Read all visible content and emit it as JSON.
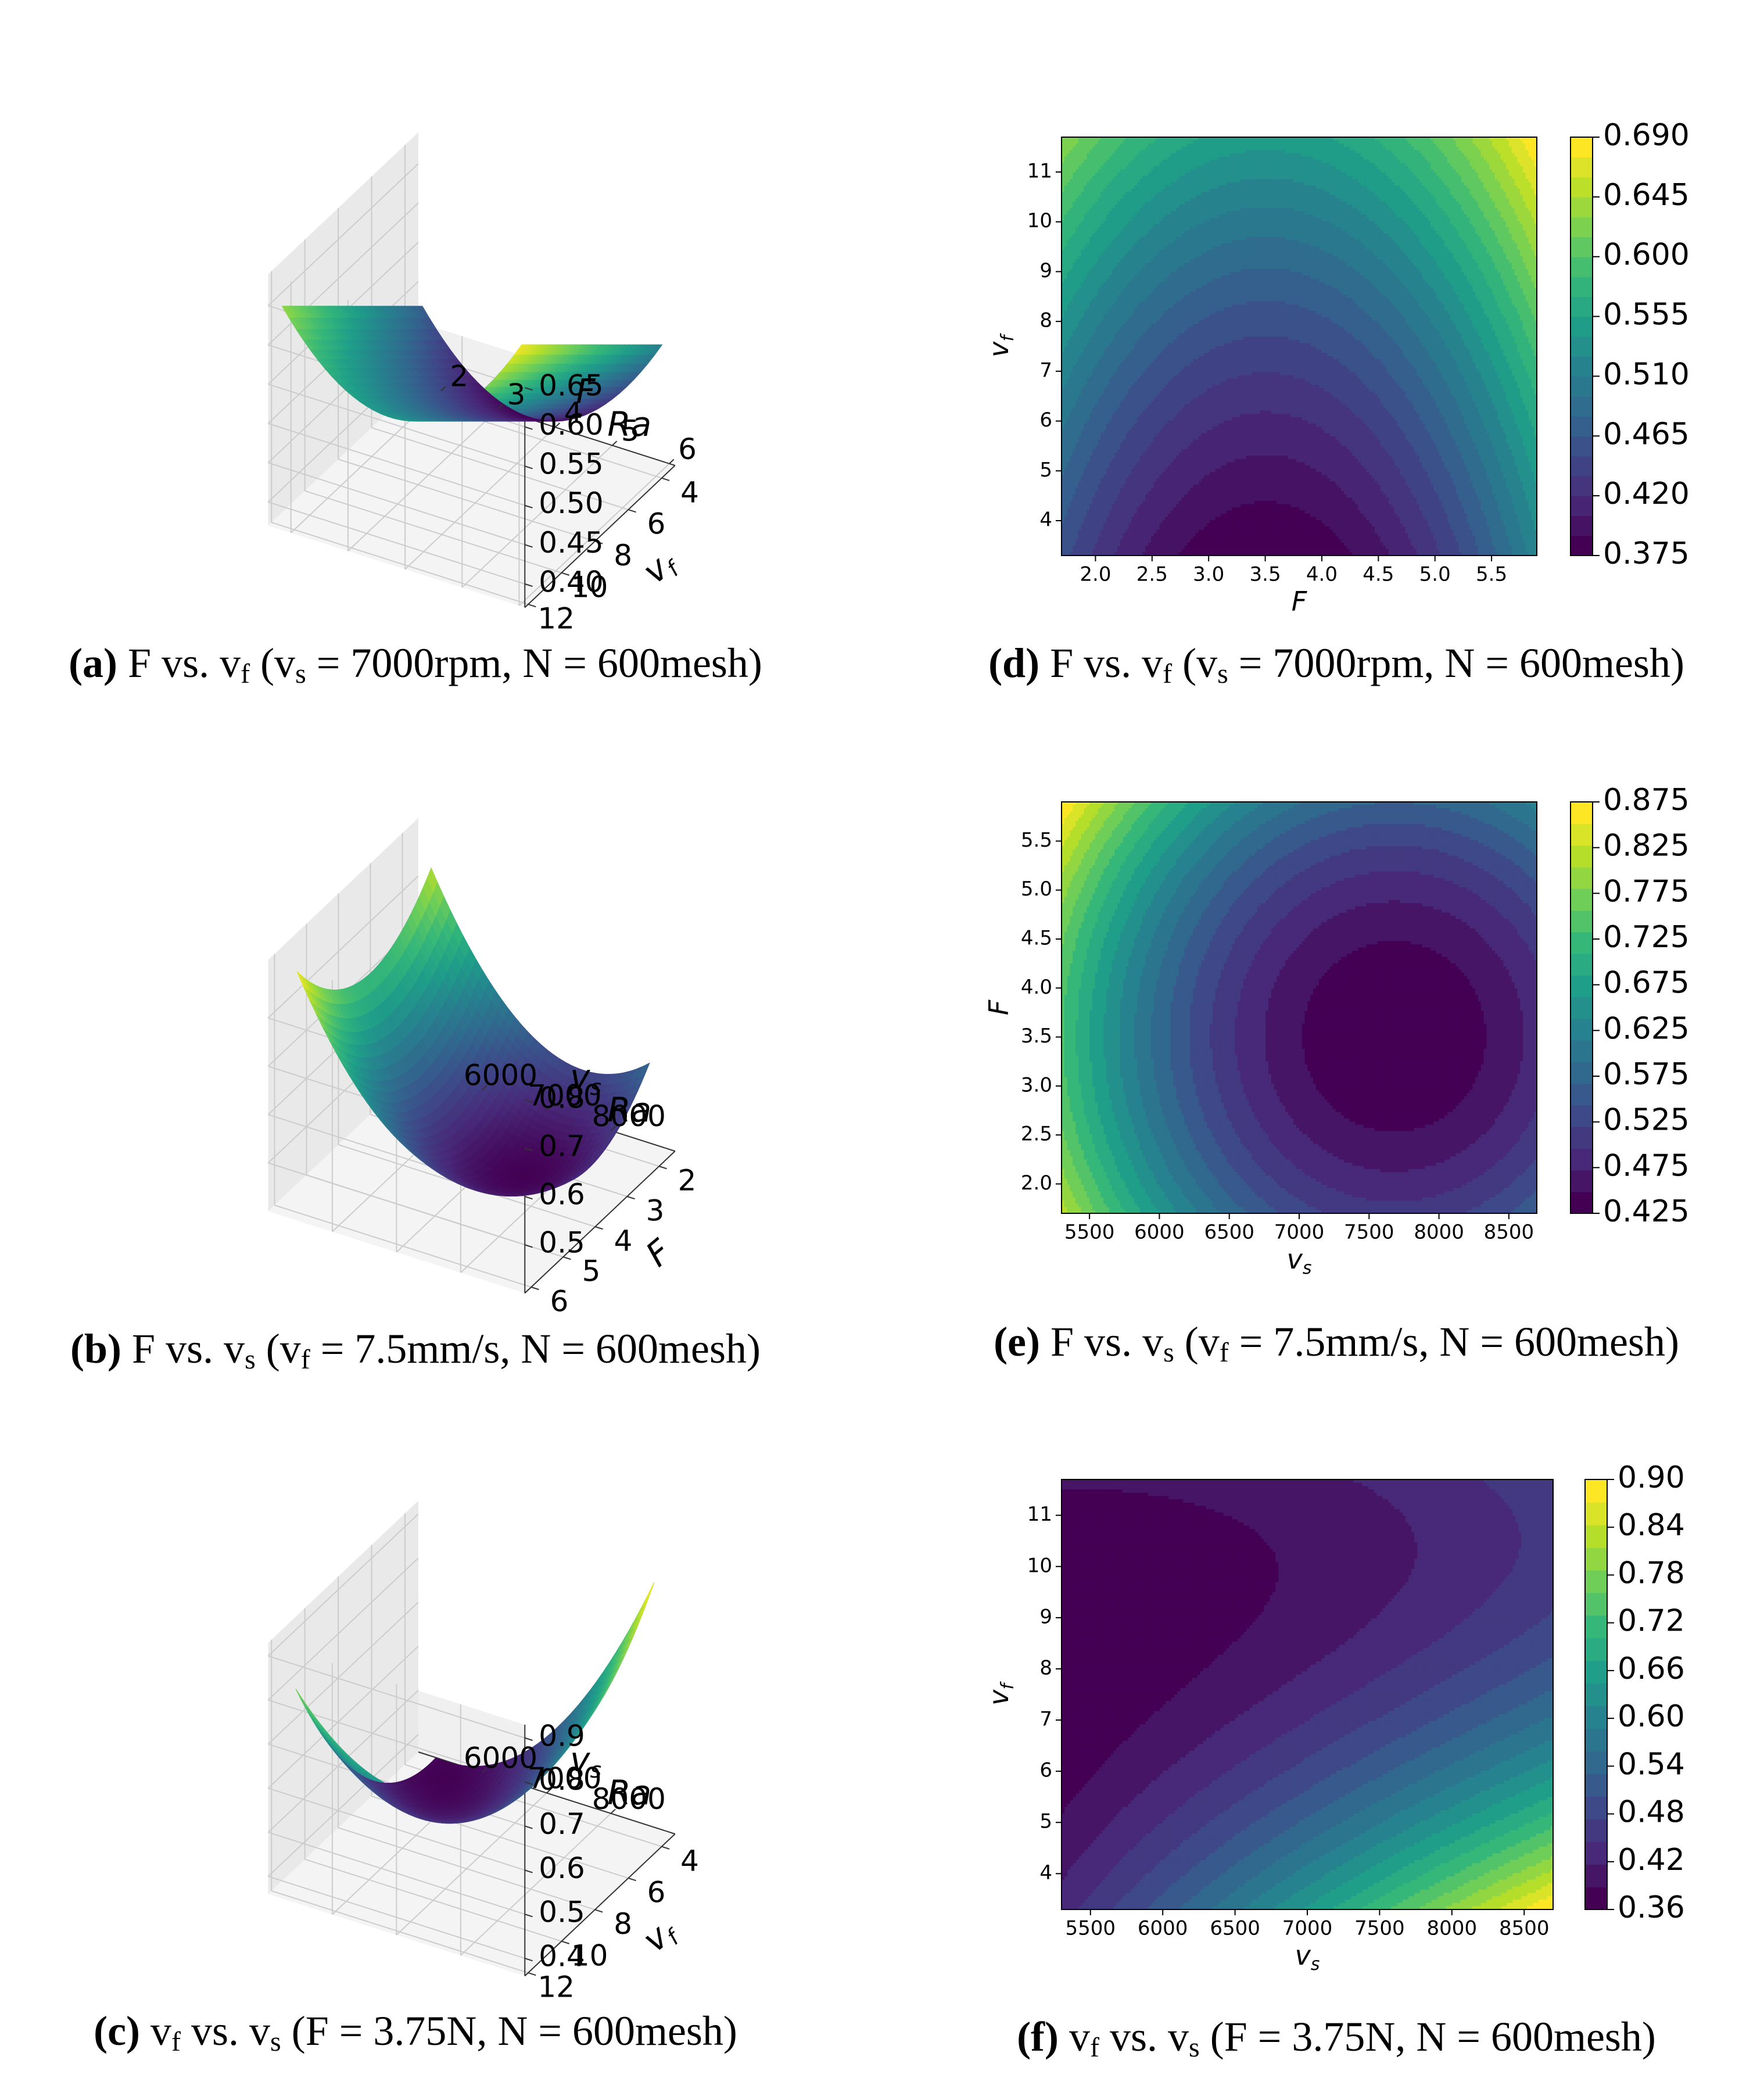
{
  "colors": {
    "viridis": [
      "#440154",
      "#482878",
      "#3e4989",
      "#31688e",
      "#26828e",
      "#1f9e89",
      "#35b779",
      "#6ece58",
      "#b5de2b",
      "#fde725"
    ],
    "pane": "#f0f0f0",
    "grid": "#cccccc",
    "text": "#000000"
  },
  "captions": [
    {
      "id": "a",
      "letter": "(a)",
      "parts": [
        "F vs. v",
        "f",
        " (v",
        "s",
        " = 7000rpm, N = 600mesh)"
      ]
    },
    {
      "id": "b",
      "letter": "(b)",
      "parts": [
        "F vs. v",
        "s",
        " (v",
        "f",
        " = 7.5mm/s, N = 600mesh)"
      ]
    },
    {
      "id": "c",
      "letter": "(c)",
      "parts": [
        "v",
        "f",
        " vs. v",
        "s",
        " (F = 3.75N, N = 600mesh)"
      ]
    },
    {
      "id": "d",
      "letter": "(d)",
      "parts": [
        "F vs. v",
        "f",
        " (v",
        "s",
        " = 7000rpm, N = 600mesh)"
      ]
    },
    {
      "id": "e",
      "letter": "(e)",
      "parts": [
        "F vs. v",
        "s",
        " (v",
        "f",
        " = 7.5mm/s, N = 600mesh)"
      ]
    },
    {
      "id": "f",
      "letter": "(f)",
      "parts": [
        "v",
        "f",
        " vs. v",
        "s",
        " (F = 3.75N, N = 600mesh)"
      ]
    }
  ],
  "chart_data": [
    {
      "id": "a",
      "type": "surface3d",
      "xlabel": "F",
      "ylabel": "v_f",
      "zlabel": "Ra",
      "xlim": [
        1.6,
        6.1
      ],
      "ylim": [
        3.2,
        12.2
      ],
      "zlim": [
        0.37,
        0.69
      ],
      "xticks": [
        2,
        3,
        4,
        5,
        6
      ],
      "yticks": [
        4,
        6,
        8,
        10,
        12
      ],
      "zticks": [
        "0.40",
        "0.45",
        "0.50",
        "0.55",
        "0.60",
        "0.65"
      ],
      "zvals": [
        0.4,
        0.45,
        0.5,
        0.55,
        0.6,
        0.65
      ],
      "surface": {
        "x_range": [
          1.7,
          5.9
        ],
        "y_range": [
          3.3,
          11.7
        ],
        "z_min": 0.375,
        "z_max": 0.69
      }
    },
    {
      "id": "b",
      "type": "surface3d",
      "xlabel": "v_s",
      "ylabel": "F",
      "zlabel": "Ra",
      "xlim": [
        5000,
        9000
      ],
      "ylim": [
        1.5,
        6.2
      ],
      "zlim": [
        0.4,
        0.92
      ],
      "xticks": [
        6000,
        7000,
        8000
      ],
      "yticks": [
        2,
        3,
        4,
        5,
        6
      ],
      "zticks": [
        "0.5",
        "0.6",
        "0.7",
        "0.8"
      ],
      "zvals": [
        0.5,
        0.6,
        0.7,
        0.8
      ],
      "surface": {
        "x_range": [
          5300,
          8700
        ],
        "y_range": [
          1.7,
          5.9
        ],
        "z_min": 0.425,
        "z_max": 0.89
      }
    },
    {
      "id": "c",
      "type": "surface3d",
      "xlabel": "v_s",
      "ylabel": "v_f",
      "zlabel": "Ra",
      "xlim": [
        5000,
        9000
      ],
      "ylim": [
        3.2,
        12.2
      ],
      "zlim": [
        0.36,
        0.93
      ],
      "xticks": [
        6000,
        7000,
        8000
      ],
      "yticks": [
        4,
        6,
        8,
        10,
        12
      ],
      "zticks": [
        "0.4",
        "0.5",
        "0.6",
        "0.7",
        "0.8",
        "0.9"
      ],
      "zvals": [
        0.4,
        0.5,
        0.6,
        0.7,
        0.8,
        0.9
      ],
      "surface": {
        "x_range": [
          5300,
          8700
        ],
        "y_range": [
          3.3,
          11.7
        ],
        "z_min": 0.36,
        "z_max": 0.92
      }
    },
    {
      "id": "d",
      "type": "contourf",
      "xlabel": "F",
      "ylabel": "v_f",
      "xlim": [
        1.7,
        5.9
      ],
      "ylim": [
        3.3,
        11.7
      ],
      "xticks": [
        "2.0",
        "2.5",
        "3.0",
        "3.5",
        "4.0",
        "4.5",
        "5.0",
        "5.5"
      ],
      "xvals": [
        2.0,
        2.5,
        3.0,
        3.5,
        4.0,
        4.5,
        5.0,
        5.5
      ],
      "yticks": [
        "4",
        "5",
        "6",
        "7",
        "8",
        "9",
        "10",
        "11"
      ],
      "yvals": [
        4,
        5,
        6,
        7,
        8,
        9,
        10,
        11
      ],
      "levels": [
        0.375,
        0.69
      ],
      "n_levels": 21,
      "colorbar_ticks": [
        "0.375",
        "0.420",
        "0.465",
        "0.510",
        "0.555",
        "0.600",
        "0.645",
        "0.690"
      ],
      "minimum": {
        "x": 3.5,
        "y": 3.3,
        "value": 0.375
      }
    },
    {
      "id": "e",
      "type": "contourf",
      "xlabel": "v_s",
      "ylabel": "F",
      "xlim": [
        5300,
        8700
      ],
      "ylim": [
        1.7,
        5.9
      ],
      "xticks": [
        "5500",
        "6000",
        "6500",
        "7000",
        "7500",
        "8000",
        "8500"
      ],
      "xvals": [
        5500,
        6000,
        6500,
        7000,
        7500,
        8000,
        8500
      ],
      "yticks": [
        "2.0",
        "2.5",
        "3.0",
        "3.5",
        "4.0",
        "4.5",
        "5.0",
        "5.5"
      ],
      "yvals": [
        2.0,
        2.5,
        3.0,
        3.5,
        4.0,
        4.5,
        5.0,
        5.5
      ],
      "levels": [
        0.425,
        0.9
      ],
      "n_levels": 19,
      "colorbar_ticks": [
        "0.425",
        "0.475",
        "0.525",
        "0.575",
        "0.625",
        "0.675",
        "0.725",
        "0.775",
        "0.825",
        "0.875"
      ],
      "minimum": {
        "x": 7700,
        "y": 3.5,
        "value": 0.425
      }
    },
    {
      "id": "f",
      "type": "contourf",
      "xlabel": "v_s",
      "ylabel": "v_f",
      "xlim": [
        5300,
        8700
      ],
      "ylim": [
        3.3,
        11.7
      ],
      "xticks": [
        "5500",
        "6000",
        "6500",
        "7000",
        "7500",
        "8000",
        "8500"
      ],
      "xvals": [
        5500,
        6000,
        6500,
        7000,
        7500,
        8000,
        8500
      ],
      "yticks": [
        "4",
        "5",
        "6",
        "7",
        "8",
        "9",
        "10",
        "11"
      ],
      "yvals": [
        4,
        5,
        6,
        7,
        8,
        9,
        10,
        11
      ],
      "levels": [
        0.36,
        0.93
      ],
      "n_levels": 19,
      "colorbar_ticks": [
        "0.36",
        "0.42",
        "0.48",
        "0.54",
        "0.60",
        "0.66",
        "0.72",
        "0.78",
        "0.84",
        "0.90"
      ],
      "minimum": {
        "x": 5300,
        "y": 8.5,
        "value": 0.36
      }
    }
  ]
}
